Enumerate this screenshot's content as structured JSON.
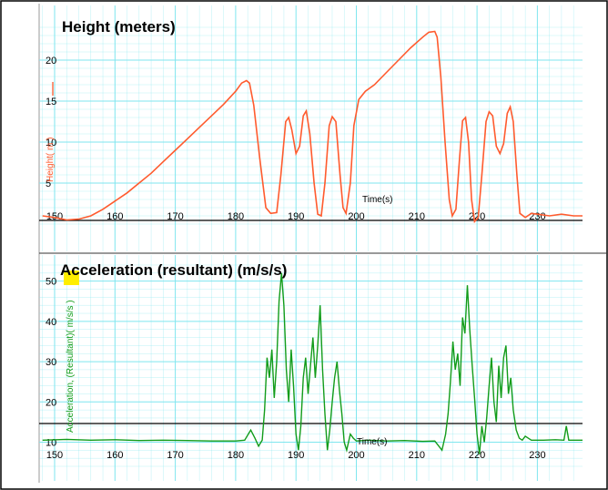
{
  "colors": {
    "height_line": "#ff5b2e",
    "accel_line": "#129c1a",
    "grid": "#7fe6ef",
    "marker": "#ffee00"
  },
  "chart_data": [
    {
      "type": "line",
      "title": "Height (meters)",
      "xlabel": "Time(s)",
      "ylabel": "Height( m )",
      "xlim": [
        148,
        238
      ],
      "ylim": [
        0,
        24
      ],
      "x_ticks": [
        150,
        160,
        170,
        180,
        190,
        200,
        210,
        220,
        230
      ],
      "y_ticks": [
        5,
        10,
        15,
        20
      ],
      "grid": true,
      "series": [
        {
          "values": [
            [
              148,
              1.0
            ],
            [
              150,
              0.8
            ],
            [
              152,
              0.5
            ],
            [
              154,
              0.6
            ],
            [
              156,
              1.0
            ],
            [
              158,
              1.8
            ],
            [
              160,
              2.8
            ],
            [
              162,
              3.8
            ],
            [
              164,
              5.0
            ],
            [
              166,
              6.2
            ],
            [
              168,
              7.6
            ],
            [
              170,
              9.0
            ],
            [
              172,
              10.4
            ],
            [
              174,
              11.8
            ],
            [
              176,
              13.2
            ],
            [
              178,
              14.6
            ],
            [
              180,
              16.2
            ],
            [
              181,
              17.2
            ],
            [
              181.8,
              17.5
            ],
            [
              182.3,
              17.2
            ],
            [
              183,
              14.5
            ],
            [
              184,
              8.0
            ],
            [
              185,
              2.0
            ],
            [
              185.8,
              1.3
            ],
            [
              186.8,
              1.4
            ],
            [
              187.5,
              6.0
            ],
            [
              188.3,
              12.5
            ],
            [
              188.8,
              13.0
            ],
            [
              189.3,
              11.5
            ],
            [
              190,
              8.6
            ],
            [
              190.6,
              9.5
            ],
            [
              191.2,
              13.2
            ],
            [
              191.7,
              13.8
            ],
            [
              192.3,
              11.0
            ],
            [
              193,
              5.0
            ],
            [
              193.6,
              1.2
            ],
            [
              194.2,
              1.0
            ],
            [
              194.8,
              5.0
            ],
            [
              195.5,
              12.0
            ],
            [
              196,
              13.1
            ],
            [
              196.6,
              12.5
            ],
            [
              197.3,
              6.0
            ],
            [
              197.8,
              2.0
            ],
            [
              198.3,
              1.3
            ],
            [
              199,
              5.0
            ],
            [
              199.6,
              12.0
            ],
            [
              200.4,
              15.2
            ],
            [
              201.5,
              16.2
            ],
            [
              203,
              17.0
            ],
            [
              205,
              18.5
            ],
            [
              207,
              20.0
            ],
            [
              209,
              21.5
            ],
            [
              211,
              22.8
            ],
            [
              212,
              23.4
            ],
            [
              213,
              23.5
            ],
            [
              213.4,
              22.8
            ],
            [
              214,
              18.0
            ],
            [
              214.7,
              10.0
            ],
            [
              215.4,
              3.0
            ],
            [
              215.9,
              1.0
            ],
            [
              216.5,
              1.8
            ],
            [
              217.1,
              8.0
            ],
            [
              217.6,
              12.6
            ],
            [
              218.1,
              13.0
            ],
            [
              218.6,
              10.0
            ],
            [
              219.1,
              3.0
            ],
            [
              219.6,
              0.3
            ],
            [
              220.2,
              0.8
            ],
            [
              220.8,
              6.0
            ],
            [
              221.5,
              12.5
            ],
            [
              222,
              13.7
            ],
            [
              222.6,
              13.2
            ],
            [
              223.2,
              9.5
            ],
            [
              223.8,
              8.6
            ],
            [
              224.4,
              9.8
            ],
            [
              225,
              13.5
            ],
            [
              225.5,
              14.3
            ],
            [
              226,
              12.5
            ],
            [
              226.6,
              6.0
            ],
            [
              227.1,
              1.3
            ],
            [
              228,
              0.8
            ],
            [
              229,
              1.3
            ],
            [
              230,
              1.2
            ],
            [
              232,
              1.0
            ],
            [
              234,
              1.2
            ],
            [
              236,
              1.0
            ],
            [
              238,
              1.0
            ]
          ]
        }
      ]
    },
    {
      "type": "line",
      "title": "Acceleration (resultant) (m/s/s)",
      "xlabel": "Time(s)",
      "ylabel": "Acceleration, (Resultant)( m/s/s )",
      "xlim": [
        148,
        238
      ],
      "ylim": [
        4,
        54
      ],
      "x_ticks": [
        150,
        160,
        170,
        180,
        190,
        200,
        210,
        220,
        230
      ],
      "y_ticks": [
        10,
        20,
        30,
        40,
        50
      ],
      "grid": true,
      "series": [
        {
          "values": [
            [
              148,
              10.5
            ],
            [
              152,
              10.7
            ],
            [
              156,
              10.5
            ],
            [
              160,
              10.6
            ],
            [
              164,
              10.4
            ],
            [
              168,
              10.5
            ],
            [
              172,
              10.4
            ],
            [
              176,
              10.3
            ],
            [
              180,
              10.3
            ],
            [
              181.5,
              10.5
            ],
            [
              182.5,
              13.0
            ],
            [
              183.2,
              11.0
            ],
            [
              183.8,
              9.0
            ],
            [
              184.4,
              10.5
            ],
            [
              184.8,
              18.0
            ],
            [
              185.2,
              31.0
            ],
            [
              185.6,
              26.0
            ],
            [
              186,
              33.0
            ],
            [
              186.4,
              21.0
            ],
            [
              186.8,
              30.0
            ],
            [
              187.2,
              45.0
            ],
            [
              187.6,
              52.0
            ],
            [
              188,
              44.0
            ],
            [
              188.4,
              28.0
            ],
            [
              188.8,
              20.0
            ],
            [
              189.2,
              33.0
            ],
            [
              189.6,
              24.0
            ],
            [
              190,
              12.0
            ],
            [
              190.4,
              8.0
            ],
            [
              190.8,
              14.0
            ],
            [
              191.2,
              26.0
            ],
            [
              191.6,
              31.0
            ],
            [
              192,
              22.0
            ],
            [
              192.4,
              29.0
            ],
            [
              192.8,
              36.0
            ],
            [
              193.2,
              26.0
            ],
            [
              193.6,
              34.0
            ],
            [
              194,
              44.0
            ],
            [
              194.4,
              28.0
            ],
            [
              194.8,
              17.0
            ],
            [
              195.2,
              8.0
            ],
            [
              195.6,
              13.0
            ],
            [
              196,
              20.0
            ],
            [
              196.4,
              26.0
            ],
            [
              196.8,
              30.0
            ],
            [
              197.2,
              23.0
            ],
            [
              197.6,
              17.0
            ],
            [
              198,
              10.0
            ],
            [
              198.4,
              8.0
            ],
            [
              199,
              12.0
            ],
            [
              199.5,
              11.0
            ],
            [
              200,
              10.3
            ],
            [
              202,
              10.5
            ],
            [
              205,
              10.3
            ],
            [
              208,
              10.4
            ],
            [
              211,
              10.2
            ],
            [
              213,
              10.3
            ],
            [
              214.2,
              8.0
            ],
            [
              214.8,
              12.0
            ],
            [
              215.2,
              17.0
            ],
            [
              215.6,
              25.0
            ],
            [
              216,
              35.0
            ],
            [
              216.4,
              28.0
            ],
            [
              216.8,
              32.0
            ],
            [
              217.2,
              24.0
            ],
            [
              217.6,
              41.0
            ],
            [
              218,
              37.0
            ],
            [
              218.4,
              49.0
            ],
            [
              218.8,
              38.0
            ],
            [
              219.2,
              29.0
            ],
            [
              219.6,
              21.0
            ],
            [
              220,
              12.0
            ],
            [
              220.4,
              7.0
            ],
            [
              220.8,
              14.0
            ],
            [
              221.2,
              10.0
            ],
            [
              221.6,
              16.0
            ],
            [
              222,
              24.0
            ],
            [
              222.4,
              31.0
            ],
            [
              222.8,
              20.0
            ],
            [
              223.2,
              15.0
            ],
            [
              223.6,
              29.0
            ],
            [
              224,
              21.0
            ],
            [
              224.4,
              31.0
            ],
            [
              224.8,
              34.0
            ],
            [
              225.2,
              22.0
            ],
            [
              225.6,
              26.0
            ],
            [
              226,
              18.0
            ],
            [
              226.5,
              13.0
            ],
            [
              227,
              11.0
            ],
            [
              227.5,
              10.5
            ],
            [
              228,
              11.5
            ],
            [
              229,
              10.5
            ],
            [
              231,
              10.5
            ],
            [
              233,
              10.6
            ],
            [
              234.4,
              10.5
            ],
            [
              234.8,
              14.0
            ],
            [
              235.2,
              10.5
            ],
            [
              238,
              10.5
            ]
          ]
        }
      ]
    }
  ]
}
